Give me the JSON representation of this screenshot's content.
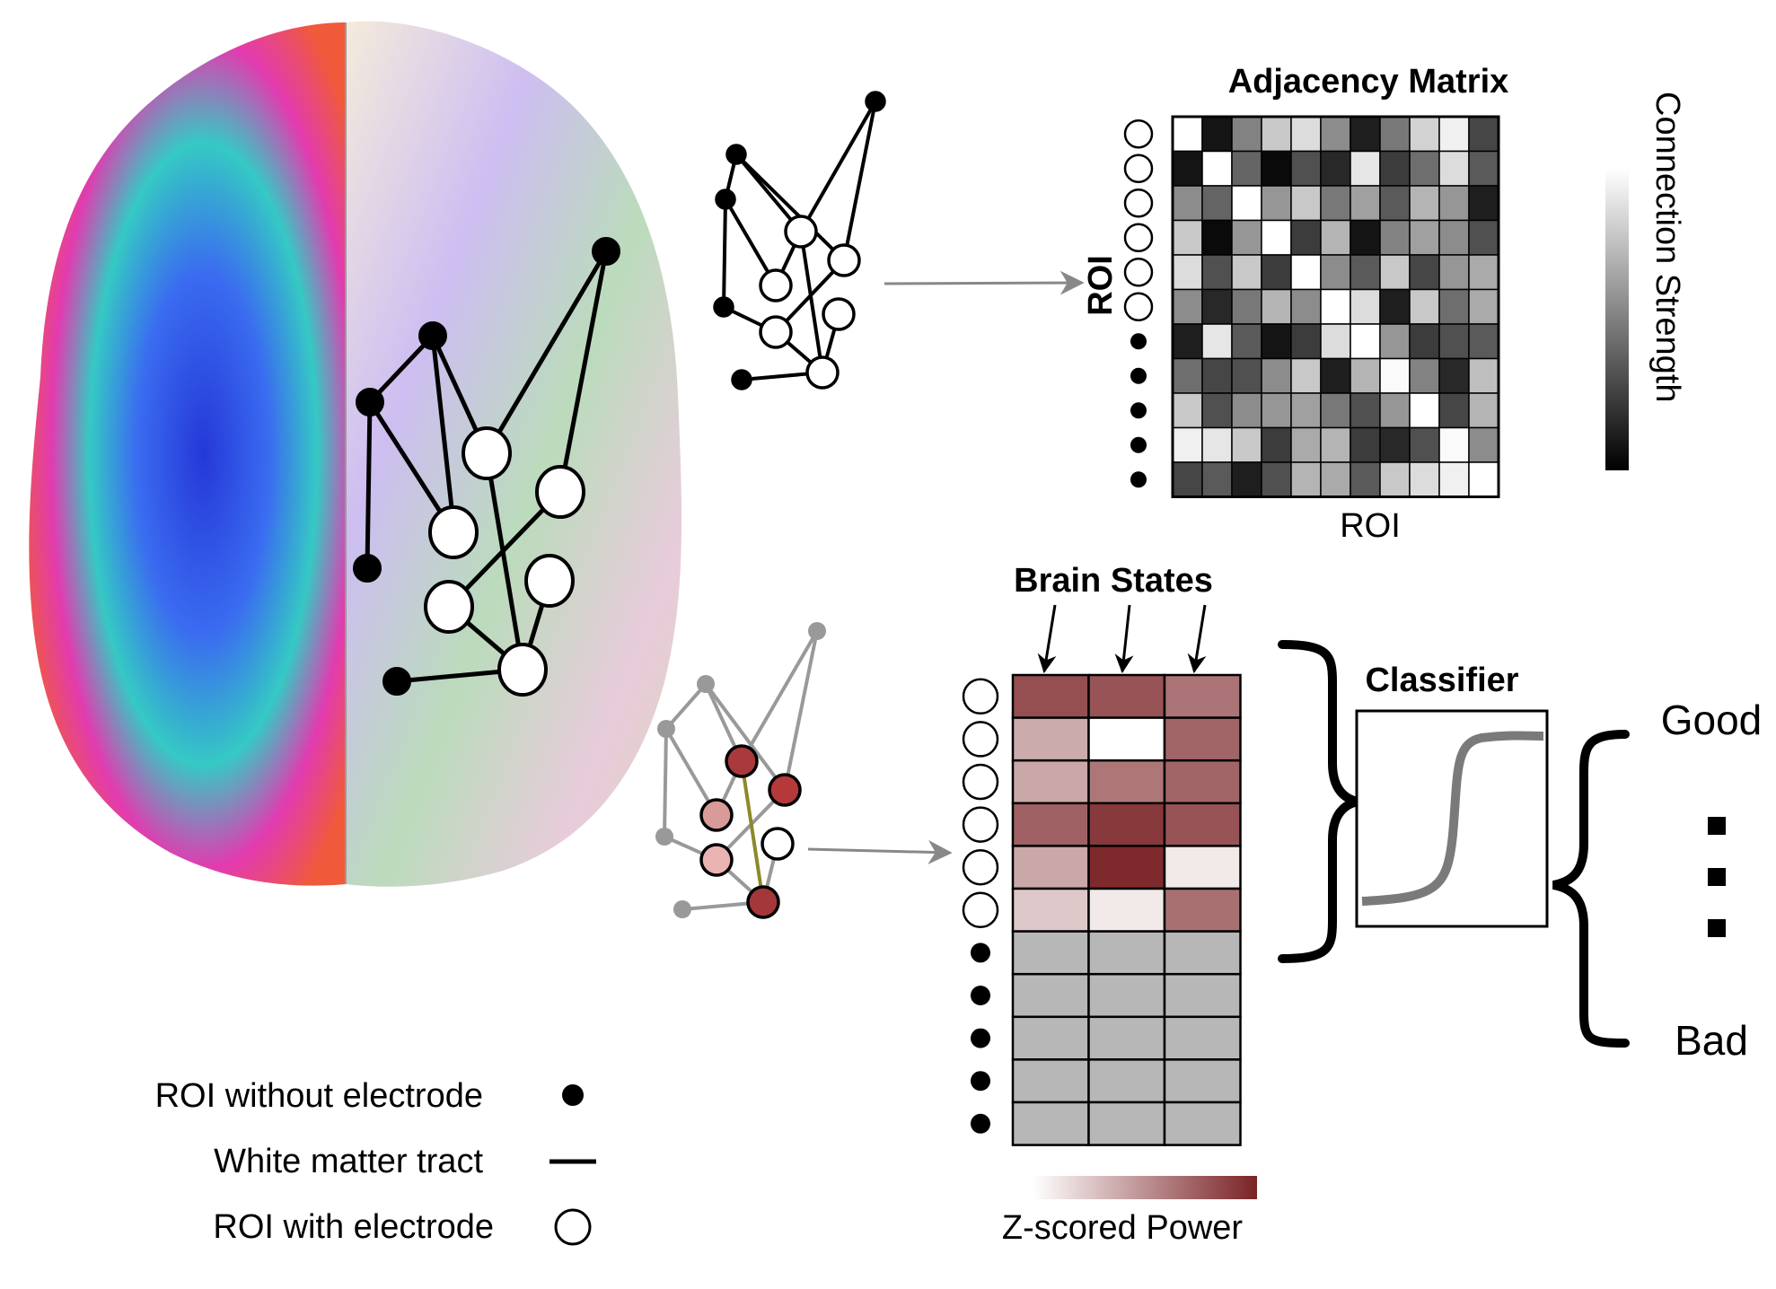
{
  "adjacency": {
    "title": "Adjacency Matrix",
    "row_axis_label": "ROI",
    "col_axis_label": "ROI",
    "colorbar_label": "Connection Strength",
    "cells": [
      [
        255,
        20,
        130,
        200,
        220,
        140,
        30,
        120,
        210,
        240,
        70
      ],
      [
        20,
        255,
        100,
        10,
        80,
        40,
        230,
        60,
        110,
        220,
        90
      ],
      [
        140,
        100,
        255,
        150,
        200,
        120,
        160,
        90,
        180,
        150,
        30
      ],
      [
        200,
        10,
        150,
        255,
        60,
        180,
        20,
        130,
        160,
        140,
        80
      ],
      [
        220,
        80,
        200,
        60,
        255,
        140,
        90,
        200,
        70,
        150,
        170
      ],
      [
        140,
        40,
        120,
        180,
        140,
        255,
        220,
        30,
        200,
        110,
        170
      ],
      [
        30,
        230,
        90,
        20,
        60,
        220,
        255,
        150,
        60,
        80,
        90
      ],
      [
        110,
        70,
        80,
        140,
        200,
        30,
        180,
        250,
        130,
        40,
        190
      ],
      [
        200,
        80,
        140,
        150,
        160,
        120,
        80,
        150,
        255,
        70,
        180
      ],
      [
        240,
        230,
        200,
        60,
        170,
        180,
        60,
        40,
        80,
        250,
        140
      ],
      [
        70,
        90,
        30,
        80,
        180,
        170,
        90,
        200,
        220,
        240,
        255
      ]
    ],
    "row_markers": [
      "open",
      "open",
      "open",
      "open",
      "open",
      "open",
      "filled",
      "filled",
      "filled",
      "filled",
      "filled"
    ]
  },
  "brain_states": {
    "title": "Brain States",
    "colorbar_label": "Z-scored Power",
    "na_color": "#b7b7b7",
    "colormap": [
      "#ffffff",
      "#7a2326"
    ],
    "values": [
      [
        0.8,
        0.78,
        0.63
      ],
      [
        0.38,
        0.0,
        0.7
      ],
      [
        0.4,
        0.62,
        0.7
      ],
      [
        0.72,
        0.9,
        0.78
      ],
      [
        0.4,
        0.97,
        0.1
      ],
      [
        0.25,
        0.1,
        0.65
      ],
      [
        null,
        null,
        null
      ],
      [
        null,
        null,
        null
      ],
      [
        null,
        null,
        null
      ],
      [
        null,
        null,
        null
      ],
      [
        null,
        null,
        null
      ]
    ],
    "row_markers": [
      "open",
      "open",
      "open",
      "open",
      "open",
      "open",
      "filled",
      "filled",
      "filled",
      "filled",
      "filled"
    ]
  },
  "classifier": {
    "title": "Classifier",
    "outputs": [
      "Good",
      "Bad"
    ]
  },
  "legend": [
    {
      "label": "ROI without electrode",
      "symbol": "filled-dot"
    },
    {
      "label": "White matter tract",
      "symbol": "line"
    },
    {
      "label": "ROI with electrode",
      "symbol": "open-circle"
    }
  ]
}
